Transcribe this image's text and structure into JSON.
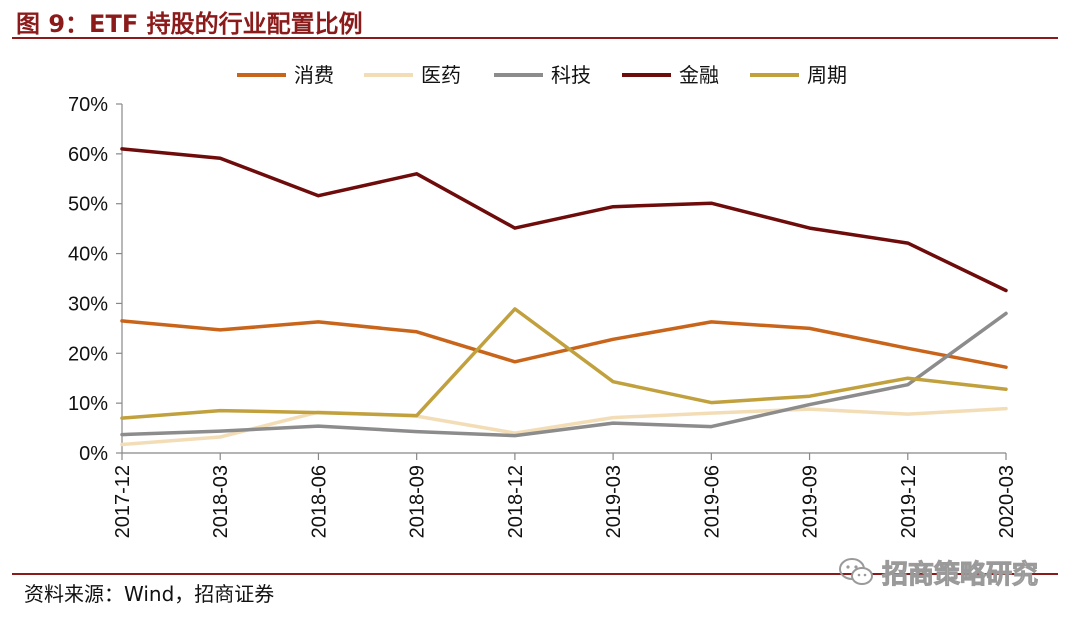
{
  "figure": {
    "title": "图 9：ETF 持股的行业配置比例",
    "source": "资料来源：Wind，招商证券",
    "watermark_text": "招商策略研究",
    "watermark_icon": "wechat-icon"
  },
  "colors": {
    "accent": "#8B1A1A",
    "消费": "#C8651B",
    "医药": "#F3DDB7",
    "科技": "#8C8C8C",
    "金融": "#6E0B0B",
    "周期": "#C1A03E"
  },
  "chart_data": {
    "type": "line",
    "title": "",
    "xlabel": "",
    "ylabel": "",
    "ylim": [
      0,
      70
    ],
    "yticks": [
      "0%",
      "10%",
      "20%",
      "30%",
      "40%",
      "50%",
      "60%",
      "70%"
    ],
    "grid": false,
    "legend": "top-center",
    "x": [
      "2017-12",
      "2018-03",
      "2018-06",
      "2018-09",
      "2018-12",
      "2019-03",
      "2019-06",
      "2019-09",
      "2019-12",
      "2020-03"
    ],
    "series": [
      {
        "name": "消费",
        "color": "#C8651B",
        "values": [
          26.5,
          24.7,
          26.3,
          24.3,
          18.3,
          22.8,
          26.3,
          25.0,
          21.0,
          17.2
        ]
      },
      {
        "name": "医药",
        "color": "#F3DDB7",
        "values": [
          1.7,
          3.2,
          8.2,
          7.4,
          4.0,
          7.1,
          8.0,
          8.8,
          7.8,
          8.9
        ]
      },
      {
        "name": "科技",
        "color": "#8C8C8C",
        "values": [
          3.7,
          4.4,
          5.4,
          4.3,
          3.5,
          6.0,
          5.3,
          9.7,
          13.7,
          28.0
        ]
      },
      {
        "name": "金融",
        "color": "#6E0B0B",
        "values": [
          61.0,
          59.1,
          51.6,
          56.0,
          45.1,
          49.4,
          50.1,
          45.1,
          42.1,
          32.6
        ]
      },
      {
        "name": "周期",
        "color": "#C1A03E",
        "values": [
          7.0,
          8.5,
          8.1,
          7.5,
          28.9,
          14.3,
          10.1,
          11.4,
          15.0,
          12.8
        ]
      }
    ]
  }
}
